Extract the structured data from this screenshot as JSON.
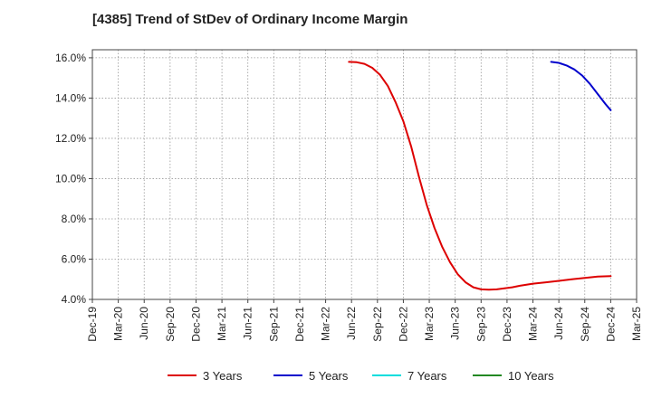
{
  "page": {
    "title": "[4385]  Trend of StDev of Ordinary Income Margin"
  },
  "chart_data": {
    "type": "line",
    "title": "[4385]  Trend of StDev of Ordinary Income Margin",
    "xlabel": "",
    "ylabel": "",
    "x_tick_labels": [
      "Dec-19",
      "Mar-20",
      "Jun-20",
      "Sep-20",
      "Dec-20",
      "Mar-21",
      "Jun-21",
      "Sep-21",
      "Dec-21",
      "Mar-22",
      "Jun-22",
      "Sep-22",
      "Dec-22",
      "Mar-23",
      "Jun-23",
      "Sep-23",
      "Dec-23",
      "Mar-24",
      "Jun-24",
      "Sep-24",
      "Dec-24",
      "Mar-25"
    ],
    "y_ticks": [
      4,
      6,
      8,
      10,
      12,
      14,
      16
    ],
    "y_tick_format": "{v}.0%",
    "ylim": [
      4,
      16.4
    ],
    "grid": true,
    "legend_position": "bottom",
    "series": [
      {
        "name": "3 Years",
        "color": "#dd0000",
        "x_index": [
          9.9,
          10.2,
          10.5,
          10.8,
          11.1,
          11.4,
          11.7,
          12.0,
          12.3,
          12.6,
          12.9,
          13.2,
          13.5,
          13.8,
          14.1,
          14.4,
          14.7,
          15.0,
          15.3,
          15.6,
          15.9,
          16.2,
          16.5,
          17.0,
          17.5,
          18.0,
          18.5,
          19.0,
          19.5,
          20.0
        ],
        "values": [
          15.8,
          15.78,
          15.7,
          15.5,
          15.15,
          14.6,
          13.8,
          12.85,
          11.6,
          10.1,
          8.7,
          7.55,
          6.6,
          5.85,
          5.25,
          4.85,
          4.6,
          4.5,
          4.48,
          4.5,
          4.55,
          4.6,
          4.68,
          4.78,
          4.85,
          4.92,
          5.0,
          5.07,
          5.13,
          5.16
        ]
      },
      {
        "name": "5 Years",
        "color": "#0000cc",
        "x_index": [
          17.7,
          18.0,
          18.3,
          18.6,
          18.9,
          19.2,
          19.5,
          19.8,
          20.0
        ],
        "values": [
          15.8,
          15.75,
          15.62,
          15.42,
          15.12,
          14.7,
          14.2,
          13.7,
          13.4
        ]
      },
      {
        "name": "7 Years",
        "color": "#00dddd",
        "x_index": [],
        "values": []
      },
      {
        "name": "10 Years",
        "color": "#228822",
        "x_index": [],
        "values": []
      }
    ]
  }
}
